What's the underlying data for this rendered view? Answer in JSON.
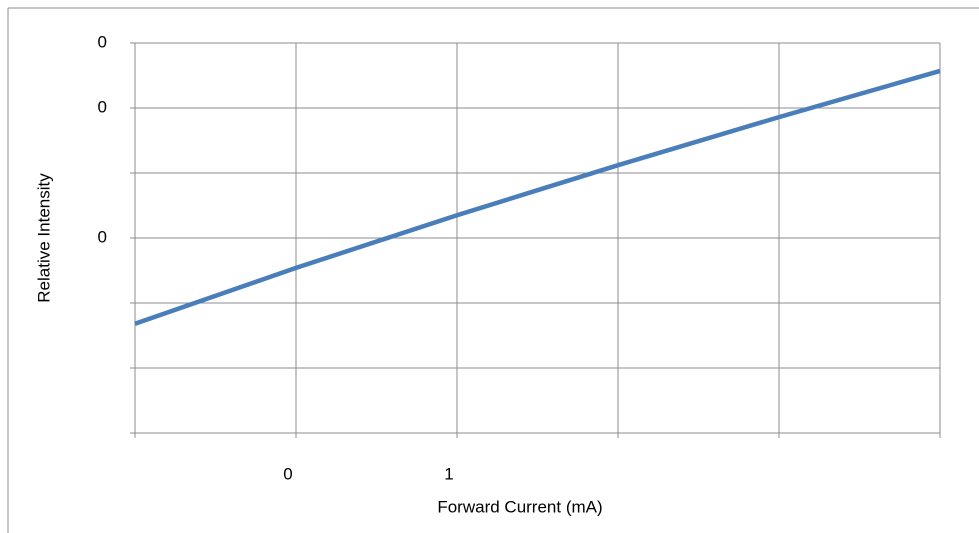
{
  "chart_data": {
    "type": "line",
    "x_label": "Forward Current (mA)",
    "y_label": "Relative Intensity",
    "xlim": [
      -1,
      4
    ],
    "xticks": [
      {
        "value": -1,
        "label": null
      },
      0,
      1,
      {
        "value": 2,
        "label": null
      },
      {
        "value": 3,
        "label": null
      },
      {
        "value": 4,
        "label": null
      }
    ],
    "ylim": [
      0,
      0.06
    ],
    "yticks": [
      {
        "value": 0,
        "label": null
      },
      {
        "value": 0.01,
        "label": null
      },
      {
        "value": 0.02,
        "label": null
      },
      {
        "value": 0.03,
        "label": "0"
      },
      {
        "value": 0.04,
        "label": null
      },
      {
        "value": 0.05,
        "label": "0"
      },
      {
        "value": 0.06,
        "label": "0"
      }
    ],
    "grid": true,
    "series": [
      {
        "name": null,
        "color": "#4a7ebb",
        "x": [
          -1,
          0,
          1,
          2,
          3,
          4
        ],
        "values": [
          0.0168,
          0.0254,
          0.0335,
          0.0412,
          0.0486,
          0.0557
        ]
      }
    ]
  }
}
